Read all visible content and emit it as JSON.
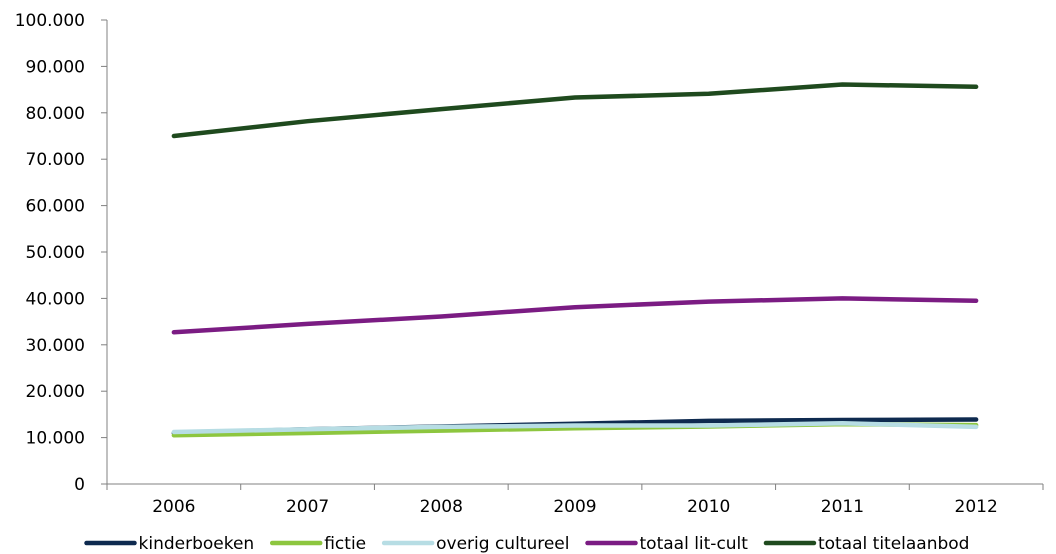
{
  "chart_data": {
    "type": "line",
    "title": "",
    "xlabel": "",
    "ylabel": "",
    "categories": [
      "2006",
      "2007",
      "2008",
      "2009",
      "2010",
      "2011",
      "2012"
    ],
    "ylim": [
      0,
      100000
    ],
    "y_ticks": [
      0,
      10000,
      20000,
      30000,
      40000,
      50000,
      60000,
      70000,
      80000,
      90000,
      100000
    ],
    "y_tick_labels": [
      "0",
      "10.000",
      "20.000",
      "30.000",
      "40.000",
      "50.000",
      "60.000",
      "70.000",
      "80.000",
      "90.000",
      "100.000"
    ],
    "grid": false,
    "legend_position": "bottom",
    "series": [
      {
        "name": "kinderboeken",
        "color": "#0e2a4f",
        "values": [
          11000,
          11800,
          12400,
          13000,
          13600,
          13800,
          13900
        ]
      },
      {
        "name": "fictie",
        "color": "#8dc63f",
        "values": [
          10500,
          11000,
          11500,
          12000,
          12400,
          12900,
          12700
        ]
      },
      {
        "name": "overig cultureel",
        "color": "#b7dde4",
        "values": [
          11200,
          11800,
          12300,
          12600,
          12600,
          13100,
          12300
        ]
      },
      {
        "name": "totaal lit-cult",
        "color": "#7b1c83",
        "values": [
          32700,
          34500,
          36100,
          38100,
          39300,
          40000,
          39500
        ]
      },
      {
        "name": "totaal titelaanbod",
        "color": "#1f4a1e",
        "values": [
          75000,
          78200,
          80800,
          83300,
          84100,
          86100,
          85600
        ]
      }
    ]
  }
}
